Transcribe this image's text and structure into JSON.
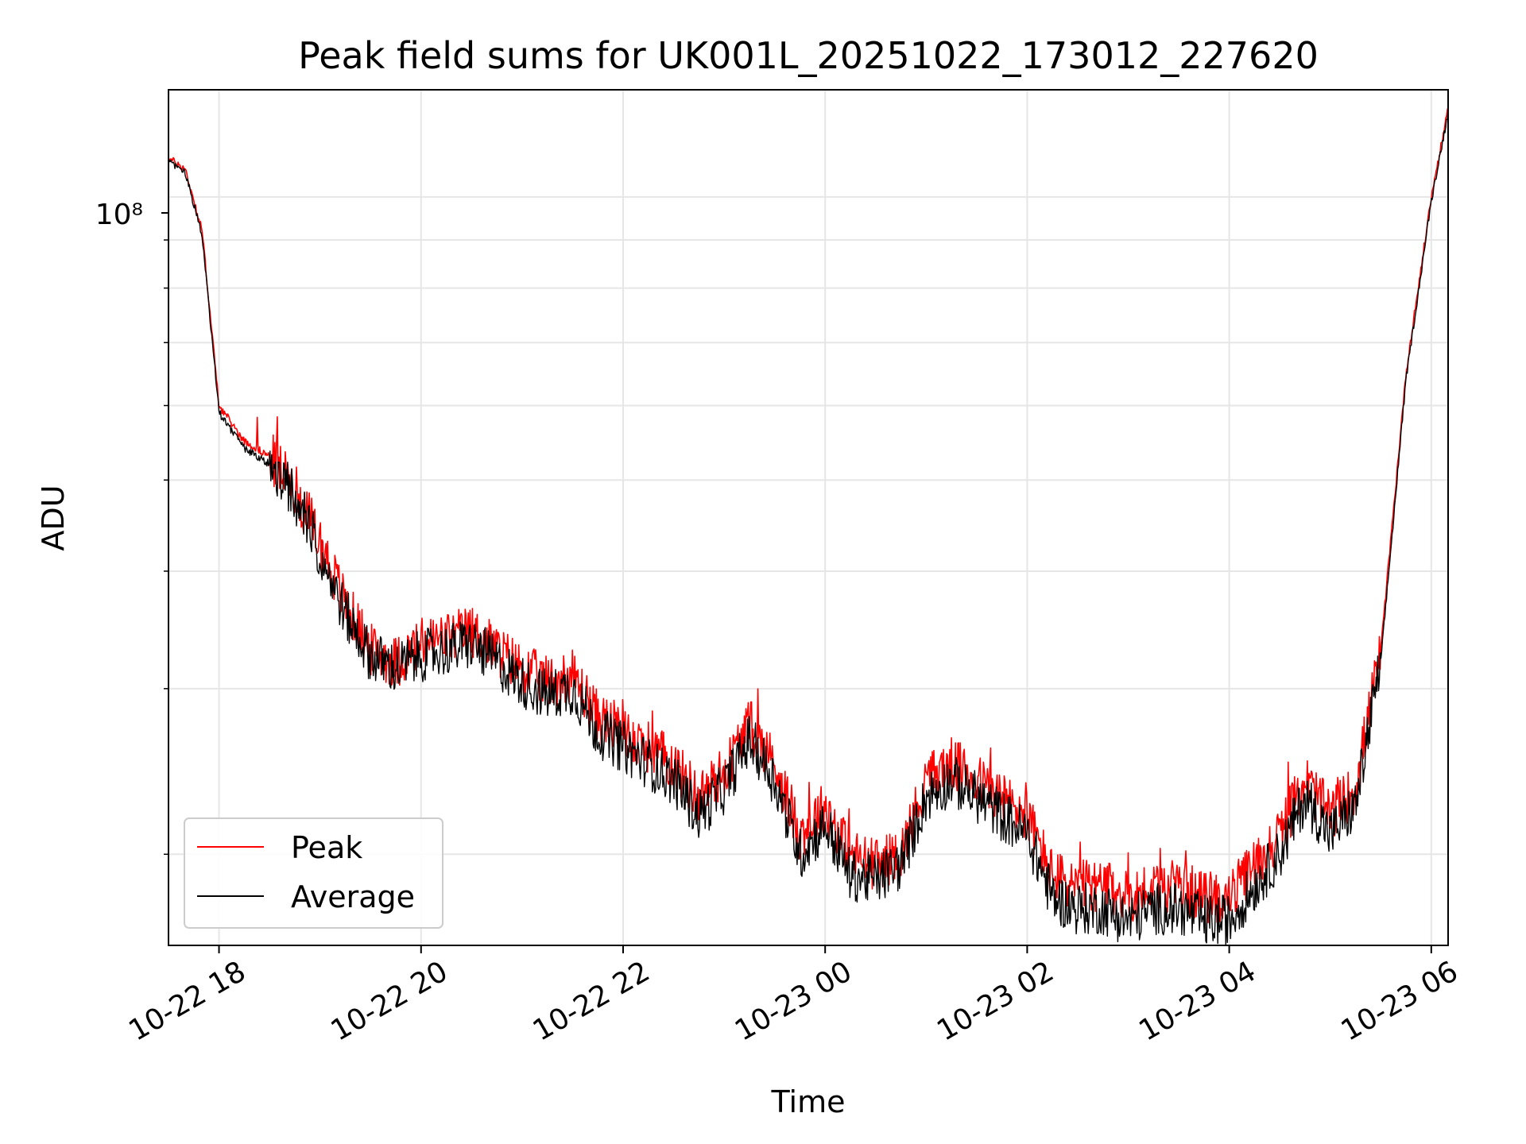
{
  "chart_data": {
    "type": "line",
    "title": "Peak field sums for UK001L_20251022_173012_227620",
    "xlabel": "Time",
    "ylabel": "ADU",
    "yscale": "log",
    "xlim": [
      "2025-10-22 17:30",
      "2025-10-23 06:10"
    ],
    "ylim": [
      16000000,
      130000000
    ],
    "x_ticks": [
      "10-22 18",
      "10-22 20",
      "10-22 22",
      "10-23 00",
      "10-23 02",
      "10-23 04",
      "10-23 06"
    ],
    "y_tick_major": "10⁸",
    "grid": true,
    "legend": {
      "position": "lower-left",
      "entries": [
        "Peak",
        "Average"
      ]
    },
    "series": [
      {
        "name": "Peak",
        "color": "#ff0000",
        "x": [
          "2025-10-22 17:30",
          "2025-10-22 17:40",
          "2025-10-22 17:50",
          "2025-10-22 18:00",
          "2025-10-22 18:15",
          "2025-10-22 18:30",
          "2025-10-22 18:45",
          "2025-10-22 19:00",
          "2025-10-22 19:15",
          "2025-10-22 19:30",
          "2025-10-22 19:45",
          "2025-10-22 20:00",
          "2025-10-22 20:15",
          "2025-10-22 20:30",
          "2025-10-22 20:45",
          "2025-10-22 21:00",
          "2025-10-22 21:15",
          "2025-10-22 21:30",
          "2025-10-22 21:45",
          "2025-10-22 22:00",
          "2025-10-22 22:15",
          "2025-10-22 22:30",
          "2025-10-22 22:45",
          "2025-10-22 23:00",
          "2025-10-22 23:15",
          "2025-10-22 23:30",
          "2025-10-22 23:45",
          "2025-10-23 00:00",
          "2025-10-23 00:15",
          "2025-10-23 00:30",
          "2025-10-23 00:45",
          "2025-10-23 01:00",
          "2025-10-23 01:15",
          "2025-10-23 01:30",
          "2025-10-23 01:45",
          "2025-10-23 02:00",
          "2025-10-23 02:15",
          "2025-10-23 02:30",
          "2025-10-23 02:45",
          "2025-10-23 03:00",
          "2025-10-23 03:15",
          "2025-10-23 03:30",
          "2025-10-23 03:45",
          "2025-10-23 04:00",
          "2025-10-23 04:15",
          "2025-10-23 04:30",
          "2025-10-23 04:45",
          "2025-10-23 05:00",
          "2025-10-23 05:15",
          "2025-10-23 05:30",
          "2025-10-23 05:45",
          "2025-10-23 06:00",
          "2025-10-23 06:10"
        ],
        "values": [
          110000000,
          107000000,
          92000000,
          60000000,
          55000000,
          53000000,
          49000000,
          43000000,
          37000000,
          33000000,
          32000000,
          33500000,
          34000000,
          34500000,
          33000000,
          31500000,
          30500000,
          31000000,
          28000000,
          27000000,
          26000000,
          25000000,
          23000000,
          24500000,
          27500000,
          25000000,
          21000000,
          22500000,
          20000000,
          19500000,
          20000000,
          24000000,
          25000000,
          24000000,
          23000000,
          22000000,
          19000000,
          18500000,
          18500000,
          18000000,
          18500000,
          18500000,
          18000000,
          18000000,
          19500000,
          21000000,
          24000000,
          22000000,
          23500000,
          33000000,
          65000000,
          100000000,
          124000000
        ]
      },
      {
        "name": "Average",
        "color": "#000000",
        "x": [
          "2025-10-22 17:30",
          "2025-10-22 17:40",
          "2025-10-22 17:50",
          "2025-10-22 18:00",
          "2025-10-22 18:15",
          "2025-10-22 18:30",
          "2025-10-22 18:45",
          "2025-10-22 19:00",
          "2025-10-22 19:15",
          "2025-10-22 19:30",
          "2025-10-22 19:45",
          "2025-10-22 20:00",
          "2025-10-22 20:15",
          "2025-10-22 20:30",
          "2025-10-22 20:45",
          "2025-10-22 21:00",
          "2025-10-22 21:15",
          "2025-10-22 21:30",
          "2025-10-22 21:45",
          "2025-10-22 22:00",
          "2025-10-22 22:15",
          "2025-10-22 22:30",
          "2025-10-22 22:45",
          "2025-10-22 23:00",
          "2025-10-22 23:15",
          "2025-10-22 23:30",
          "2025-10-22 23:45",
          "2025-10-23 00:00",
          "2025-10-23 00:15",
          "2025-10-23 00:30",
          "2025-10-23 00:45",
          "2025-10-23 01:00",
          "2025-10-23 01:15",
          "2025-10-23 01:30",
          "2025-10-23 01:45",
          "2025-10-23 02:00",
          "2025-10-23 02:15",
          "2025-10-23 02:30",
          "2025-10-23 02:45",
          "2025-10-23 03:00",
          "2025-10-23 03:15",
          "2025-10-23 03:30",
          "2025-10-23 03:45",
          "2025-10-23 04:00",
          "2025-10-23 04:15",
          "2025-10-23 04:30",
          "2025-10-23 04:45",
          "2025-10-23 05:00",
          "2025-10-23 05:15",
          "2025-10-23 05:30",
          "2025-10-23 05:45",
          "2025-10-23 06:00",
          "2025-10-23 06:10"
        ],
        "values": [
          109000000,
          106000000,
          91000000,
          59000000,
          54000000,
          52000000,
          48000000,
          42000000,
          36000000,
          32500000,
          31500000,
          32500000,
          33000000,
          33500000,
          32000000,
          30500000,
          29500000,
          30000000,
          27000000,
          26000000,
          25000000,
          24000000,
          22000000,
          23500000,
          26500000,
          24000000,
          20000000,
          21500000,
          19000000,
          18800000,
          19500000,
          23000000,
          24000000,
          23000000,
          22000000,
          21000000,
          18000000,
          17500000,
          17500000,
          17000000,
          17500000,
          17500000,
          17000000,
          17000000,
          18500000,
          20000000,
          23000000,
          21000000,
          22500000,
          32000000,
          64000000,
          99000000,
          123000000
        ]
      }
    ]
  }
}
